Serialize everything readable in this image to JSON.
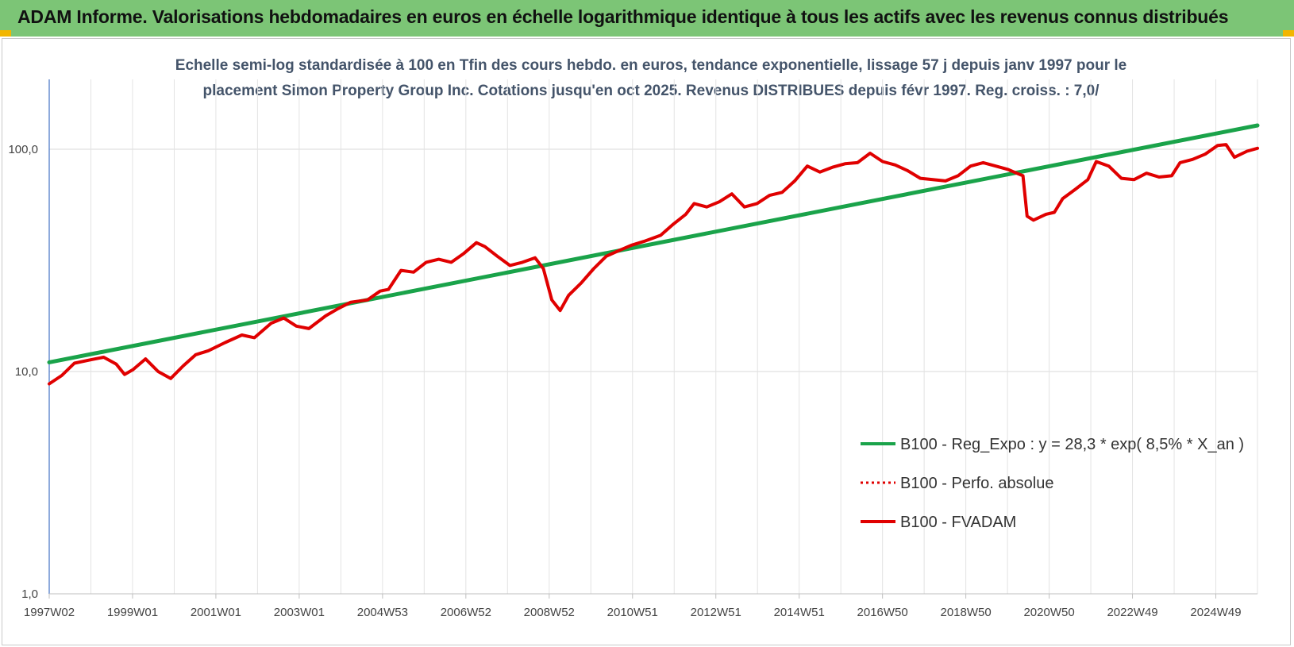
{
  "header": {
    "title": "ADAM Informe. Valorisations hebdomadaires en euros en échelle logarithmique identique à tous les actifs avec les revenus connus distribués"
  },
  "chart_data": {
    "type": "line",
    "title_line1": "Echelle semi-log standardisée à 100 en Tfin des cours hebdo. en euros, tendance exponentielle, lissage 57 j depuis janv 1997 pour le",
    "title_line2": "placement Simon Property Group Inc. Cotations jusqu'en oct 2025.  Revenus DISTRIBUES depuis févr 1997. Reg. croiss. : 7,0/",
    "y_scale": "log",
    "ylim": [
      1,
      180
    ],
    "y_ticks": [
      "1,0",
      "10,0",
      "100,0"
    ],
    "x_ticks": [
      "1997W02",
      "1999W01",
      "2001W01",
      "2003W01",
      "2004W53",
      "2006W52",
      "2008W52",
      "2010W51",
      "2012W51",
      "2014W51",
      "2016W50",
      "2018W50",
      "2020W50",
      "2022W49",
      "2024W49"
    ],
    "xlim": [
      1997.0,
      2025.85
    ],
    "grid": "vertical-and-horizontal",
    "legend_position": "right",
    "series": [
      {
        "name": "B100 - Reg_Expo : y = 28,3 * exp( 8,5% *  X_an )",
        "color": "#1aa34a",
        "style": "solid",
        "points": [
          [
            1997.0,
            11.0
          ],
          [
            2025.85,
            128.0
          ]
        ]
      },
      {
        "name": "B100 - Perfo. absolue",
        "color": "#e00000",
        "style": "dotted",
        "points": []
      },
      {
        "name": "B100 - FVADAM",
        "color": "#e00000",
        "style": "solid",
        "points": [
          [
            1997.0,
            8.8
          ],
          [
            1997.3,
            9.6
          ],
          [
            1997.6,
            10.9
          ],
          [
            1998.0,
            11.3
          ],
          [
            1998.3,
            11.6
          ],
          [
            1998.6,
            10.8
          ],
          [
            1998.8,
            9.7
          ],
          [
            1999.0,
            10.2
          ],
          [
            1999.3,
            11.4
          ],
          [
            1999.6,
            10.0
          ],
          [
            1999.9,
            9.3
          ],
          [
            2000.2,
            10.6
          ],
          [
            2000.5,
            11.9
          ],
          [
            2000.8,
            12.4
          ],
          [
            2001.2,
            13.5
          ],
          [
            2001.6,
            14.6
          ],
          [
            2001.9,
            14.2
          ],
          [
            2002.3,
            16.5
          ],
          [
            2002.6,
            17.4
          ],
          [
            2002.9,
            16.0
          ],
          [
            2003.2,
            15.6
          ],
          [
            2003.6,
            17.8
          ],
          [
            2003.9,
            19.2
          ],
          [
            2004.2,
            20.5
          ],
          [
            2004.6,
            21.0
          ],
          [
            2004.9,
            23.0
          ],
          [
            2005.1,
            23.4
          ],
          [
            2005.4,
            28.5
          ],
          [
            2005.7,
            28.0
          ],
          [
            2006.0,
            31.0
          ],
          [
            2006.3,
            32.0
          ],
          [
            2006.6,
            31.0
          ],
          [
            2006.9,
            34.0
          ],
          [
            2007.2,
            38.0
          ],
          [
            2007.4,
            36.5
          ],
          [
            2007.7,
            33.0
          ],
          [
            2008.0,
            30.0
          ],
          [
            2008.3,
            31.0
          ],
          [
            2008.6,
            32.5
          ],
          [
            2008.8,
            29.0
          ],
          [
            2009.0,
            21.0
          ],
          [
            2009.2,
            18.8
          ],
          [
            2009.4,
            22.0
          ],
          [
            2009.7,
            25.0
          ],
          [
            2010.0,
            29.0
          ],
          [
            2010.3,
            33.0
          ],
          [
            2010.6,
            35.0
          ],
          [
            2010.9,
            37.0
          ],
          [
            2011.2,
            38.5
          ],
          [
            2011.6,
            41.0
          ],
          [
            2011.9,
            46.0
          ],
          [
            2012.2,
            51.0
          ],
          [
            2012.4,
            57.0
          ],
          [
            2012.7,
            55.0
          ],
          [
            2013.0,
            58.0
          ],
          [
            2013.3,
            63.0
          ],
          [
            2013.6,
            55.0
          ],
          [
            2013.9,
            57.0
          ],
          [
            2014.2,
            62.0
          ],
          [
            2014.5,
            64.0
          ],
          [
            2014.8,
            72.0
          ],
          [
            2015.1,
            84.0
          ],
          [
            2015.4,
            79.0
          ],
          [
            2015.7,
            83.0
          ],
          [
            2016.0,
            86.0
          ],
          [
            2016.3,
            87.0
          ],
          [
            2016.6,
            96.0
          ],
          [
            2016.9,
            88.0
          ],
          [
            2017.2,
            85.0
          ],
          [
            2017.5,
            80.0
          ],
          [
            2017.8,
            74.0
          ],
          [
            2018.1,
            73.0
          ],
          [
            2018.4,
            72.0
          ],
          [
            2018.7,
            76.0
          ],
          [
            2019.0,
            84.0
          ],
          [
            2019.3,
            87.0
          ],
          [
            2019.6,
            84.0
          ],
          [
            2019.9,
            81.0
          ],
          [
            2020.1,
            78.0
          ],
          [
            2020.25,
            76.0
          ],
          [
            2020.35,
            50.0
          ],
          [
            2020.5,
            48.0
          ],
          [
            2020.8,
            51.0
          ],
          [
            2021.0,
            52.0
          ],
          [
            2021.2,
            60.0
          ],
          [
            2021.5,
            66.0
          ],
          [
            2021.8,
            73.0
          ],
          [
            2022.0,
            88.0
          ],
          [
            2022.3,
            84.0
          ],
          [
            2022.6,
            74.0
          ],
          [
            2022.9,
            73.0
          ],
          [
            2023.2,
            78.0
          ],
          [
            2023.5,
            75.0
          ],
          [
            2023.8,
            76.0
          ],
          [
            2024.0,
            87.0
          ],
          [
            2024.3,
            90.0
          ],
          [
            2024.6,
            95.0
          ],
          [
            2024.9,
            104.0
          ],
          [
            2025.1,
            105.0
          ],
          [
            2025.3,
            92.0
          ],
          [
            2025.6,
            98.0
          ],
          [
            2025.85,
            101.0
          ]
        ]
      }
    ]
  }
}
